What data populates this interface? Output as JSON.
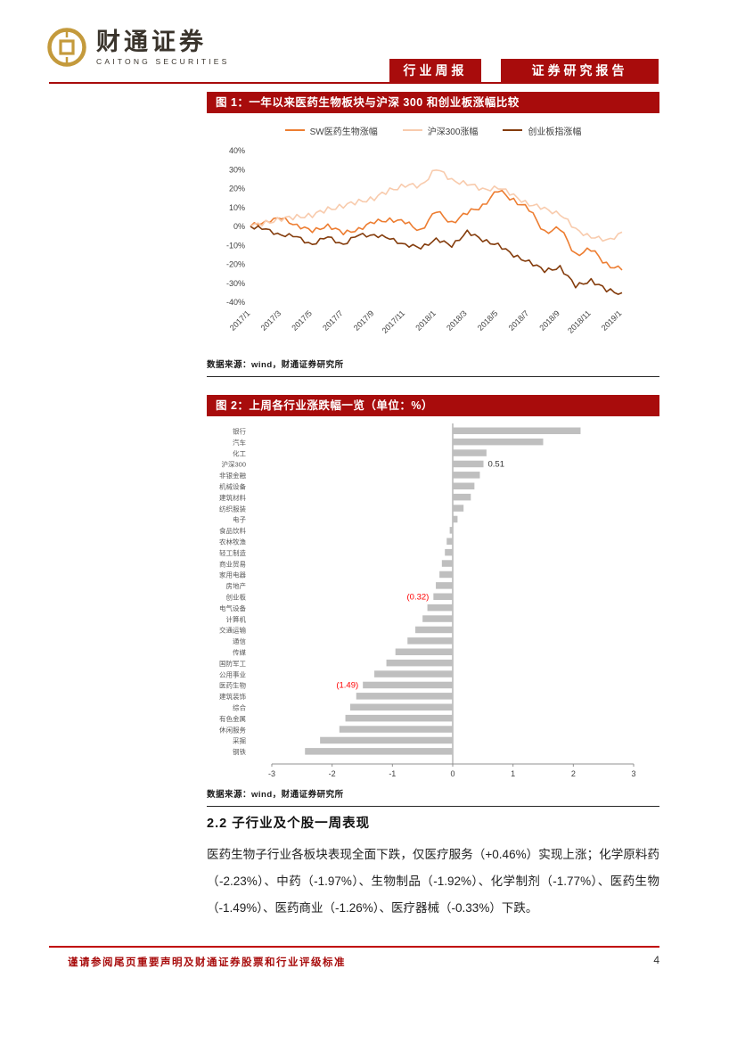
{
  "colors": {
    "brand_red": "#a80c0c",
    "footer_red": "#c00000",
    "sw": "#ED7D31",
    "hs300": "#F8CBAD",
    "cyb": "#843C0C",
    "bar": "#BFBFBF",
    "annot_red": "#FF0000",
    "annot_black": "#333333",
    "logo_gold": "#C49A3C"
  },
  "header": {
    "logo_cn": "财通证券",
    "logo_en": "CAITONG SECURITIES",
    "badge1": "行业周报",
    "badge2": "证券研究报告"
  },
  "figure1": {
    "title": "图 1：一年以来医药生物板块与沪深 300 和创业板涨幅比较",
    "source": "数据来源：wind，财通证券研究所"
  },
  "figure2": {
    "title": "图 2：上周各行业涨跌幅一览（单位：%）",
    "source": "数据来源：wind，财通证券研究所"
  },
  "section": {
    "heading": "2.2 子行业及个股一周表现",
    "paragraph": "医药生物子行业各板块表现全面下跌，仅医疗服务（+0.46%）实现上涨；化学原料药（-2.23%）、中药（-1.97%）、生物制品（-1.92%）、化学制剂（-1.77%）、医药生物（-1.49%）、医药商业（-1.26%）、医疗器械（-0.33%）下跌。"
  },
  "footer": {
    "disclaimer": "谨请参阅尾页重要声明及财通证券股票和行业评级标准",
    "page": "4"
  },
  "chart_data": [
    {
      "type": "line",
      "title": "一年以来医药生物板块与沪深300和创业板涨幅比较",
      "y_unit": "%",
      "ylim": [
        -40,
        40
      ],
      "y_tick_step": 10,
      "legend_position": "top",
      "x_ticks": [
        "2017/1",
        "2017/3",
        "2017/5",
        "2017/7",
        "2017/9",
        "2017/11",
        "2018/1",
        "2018/3",
        "2018/5",
        "2018/7",
        "2018/9",
        "2018/11",
        "2019/1"
      ],
      "x_months": [
        "2017/1",
        "2017/2",
        "2017/3",
        "2017/4",
        "2017/5",
        "2017/6",
        "2017/7",
        "2017/8",
        "2017/9",
        "2017/10",
        "2017/11",
        "2017/12",
        "2018/1",
        "2018/2",
        "2018/3",
        "2018/4",
        "2018/5",
        "2018/6",
        "2018/7",
        "2018/8",
        "2018/9",
        "2018/10",
        "2018/11",
        "2018/12",
        "2019/1"
      ],
      "series": [
        {
          "name": "SW医药生物涨幅",
          "color_key": "sw",
          "values": [
            0,
            3,
            4,
            1,
            -3,
            1,
            -4,
            -1,
            2,
            4,
            2,
            -2,
            8,
            2,
            7,
            11,
            19,
            14,
            9,
            -3,
            -1,
            -15,
            -12,
            -20,
            -23
          ]
        },
        {
          "name": "沪深300涨幅",
          "color_key": "hs300",
          "values": [
            0,
            2,
            4,
            5,
            6,
            9,
            11,
            13,
            15,
            19,
            22,
            21,
            31,
            24,
            23,
            19,
            21,
            16,
            12,
            9,
            7,
            -2,
            -5,
            -8,
            -3
          ]
        },
        {
          "name": "创业板指涨幅",
          "color_key": "cyb",
          "values": [
            0,
            -2,
            -4,
            -6,
            -9,
            -6,
            -9,
            -5,
            -4,
            -7,
            -9,
            -12,
            -6,
            -11,
            -2,
            -8,
            -9,
            -16,
            -18,
            -24,
            -21,
            -32,
            -28,
            -34,
            -35
          ]
        }
      ]
    },
    {
      "type": "bar",
      "orientation": "horizontal",
      "title": "上周各行业涨跌幅一览（单位：%）",
      "xlim": [
        -3,
        3
      ],
      "x_ticks": [
        -3,
        -2,
        -1,
        0,
        1,
        2,
        3
      ],
      "categories": [
        "银行",
        "汽车",
        "化工",
        "沪深300",
        "非银金融",
        "机械设备",
        "建筑材料",
        "纺织服装",
        "电子",
        "食品饮料",
        "农林牧渔",
        "轻工制造",
        "商业贸易",
        "家用电器",
        "房地产",
        "创业板",
        "电气设备",
        "计算机",
        "交通运输",
        "通信",
        "传媒",
        "国防军工",
        "公用事业",
        "医药生物",
        "建筑装饰",
        "综合",
        "有色金属",
        "休闲服务",
        "采掘",
        "钢铁"
      ],
      "values": [
        2.12,
        1.5,
        0.56,
        0.51,
        0.45,
        0.36,
        0.3,
        0.18,
        0.08,
        -0.05,
        -0.1,
        -0.13,
        -0.18,
        -0.22,
        -0.28,
        -0.32,
        -0.42,
        -0.5,
        -0.62,
        -0.75,
        -0.95,
        -1.1,
        -1.3,
        -1.49,
        -1.6,
        -1.7,
        -1.78,
        -1.88,
        -2.2,
        -2.45
      ],
      "annotations": [
        {
          "category": "沪深300",
          "text": "0.51",
          "color_key": "annot_black"
        },
        {
          "category": "创业板",
          "text": "(0.32)",
          "color_key": "annot_red"
        },
        {
          "category": "医药生物",
          "text": "(1.49)",
          "color_key": "annot_red"
        }
      ]
    }
  ]
}
